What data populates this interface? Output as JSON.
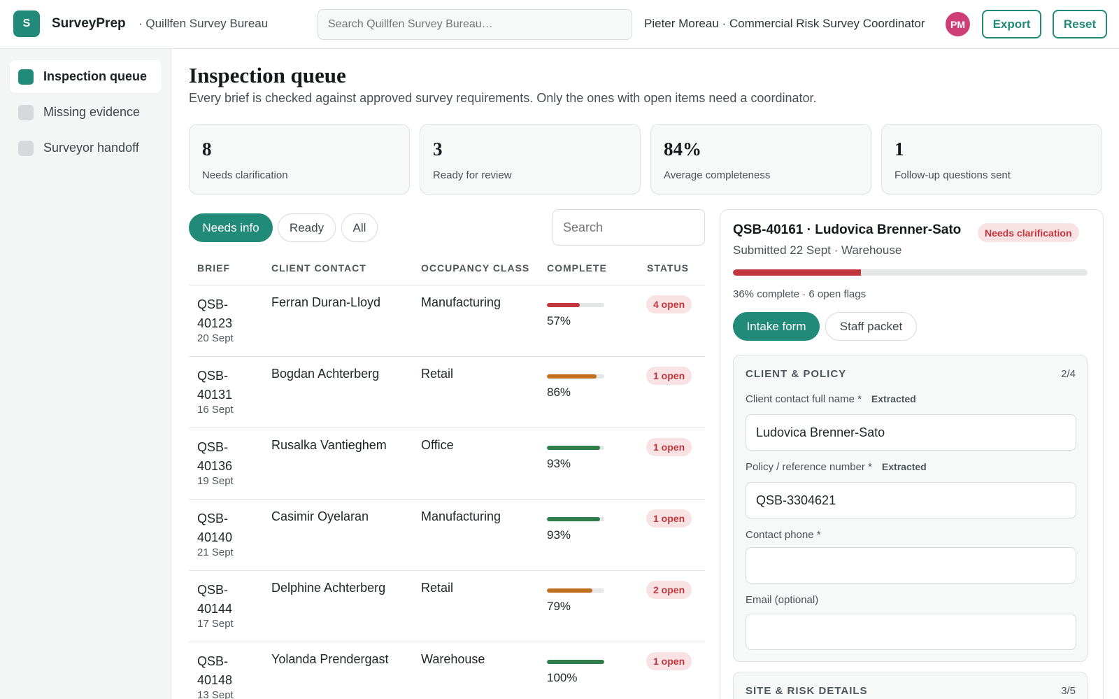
{
  "app": {
    "logo_letter": "S",
    "name": "SurveyPrep",
    "org": "· Quillfen Survey Bureau",
    "search_placeholder": "Search Quillfen Survey Bureau…",
    "user": "Pieter Moreau · Commercial Risk Survey Coordinator",
    "avatar_initials": "PM",
    "export_label": "Export",
    "reset_label": "Reset"
  },
  "sidebar": {
    "items": [
      {
        "label": "Inspection queue",
        "active": true
      },
      {
        "label": "Missing evidence",
        "active": false
      },
      {
        "label": "Surveyor handoff",
        "active": false
      }
    ]
  },
  "page": {
    "title": "Inspection queue",
    "subtitle": "Every brief is checked against approved survey requirements. Only the ones with open items need a coordinator."
  },
  "stats": [
    {
      "value": "8",
      "label": "Needs clarification"
    },
    {
      "value": "3",
      "label": "Ready for review"
    },
    {
      "value": "84%",
      "label": "Average completeness"
    },
    {
      "value": "1",
      "label": "Follow-up questions sent"
    }
  ],
  "filters": {
    "chips": [
      {
        "label": "Needs info",
        "active": true
      },
      {
        "label": "Ready",
        "active": false
      },
      {
        "label": "All",
        "active": false
      }
    ],
    "search_placeholder": "Search"
  },
  "table": {
    "headers": [
      "BRIEF",
      "CLIENT CONTACT",
      "OCCUPANCY CLASS",
      "COMPLETE",
      "STATUS"
    ],
    "rows": [
      {
        "id": "QSB-40123",
        "date": "20 Sept",
        "contact": "Ferran Duran-Lloyd",
        "occupancy": "Manufacturing",
        "complete": 57,
        "complete_label": "57%",
        "status": "4 open"
      },
      {
        "id": "QSB-40131",
        "date": "16 Sept",
        "contact": "Bogdan Achterberg",
        "occupancy": "Retail",
        "complete": 86,
        "complete_label": "86%",
        "status": "1 open"
      },
      {
        "id": "QSB-40136",
        "date": "19 Sept",
        "contact": "Rusalka Vantieghem",
        "occupancy": "Office",
        "complete": 93,
        "complete_label": "93%",
        "status": "1 open"
      },
      {
        "id": "QSB-40140",
        "date": "21 Sept",
        "contact": "Casimir Oyelaran",
        "occupancy": "Manufacturing",
        "complete": 93,
        "complete_label": "93%",
        "status": "1 open"
      },
      {
        "id": "QSB-40144",
        "date": "17 Sept",
        "contact": "Delphine Achterberg",
        "occupancy": "Retail",
        "complete": 79,
        "complete_label": "79%",
        "status": "2 open"
      },
      {
        "id": "QSB-40148",
        "date": "13 Sept",
        "contact": "Yolanda Prendergast",
        "occupancy": "Warehouse",
        "complete": 100,
        "complete_label": "100%",
        "status": "1 open"
      }
    ]
  },
  "colors": {
    "accent": "#218a78",
    "low": "#c2373d",
    "mid": "#c0701f",
    "high": "#2f7d4d"
  },
  "detail": {
    "title": "QSB-40161 · Ludovica Brenner-Sato",
    "badge": "Needs clarification",
    "subtitle": "Submitted 22 Sept · Warehouse",
    "complete": 36,
    "meta": "36% complete · 6 open flags",
    "tabs": [
      {
        "label": "Intake form",
        "active": true
      },
      {
        "label": "Staff packet",
        "active": false
      }
    ],
    "section1": {
      "title": "CLIENT & POLICY",
      "count": "2/4",
      "fields": [
        {
          "label": "Client contact full name *",
          "tag": "Extracted",
          "value": "Ludovica Brenner-Sato"
        },
        {
          "label": "Policy / reference number *",
          "tag": "Extracted",
          "value": "QSB-3304621"
        },
        {
          "label": "Contact phone *",
          "tag": "",
          "value": ""
        },
        {
          "label": "Email (optional)",
          "tag": "",
          "value": ""
        }
      ]
    },
    "section2": {
      "title": "SITE & RISK DETAILS",
      "count": "3/5"
    }
  }
}
